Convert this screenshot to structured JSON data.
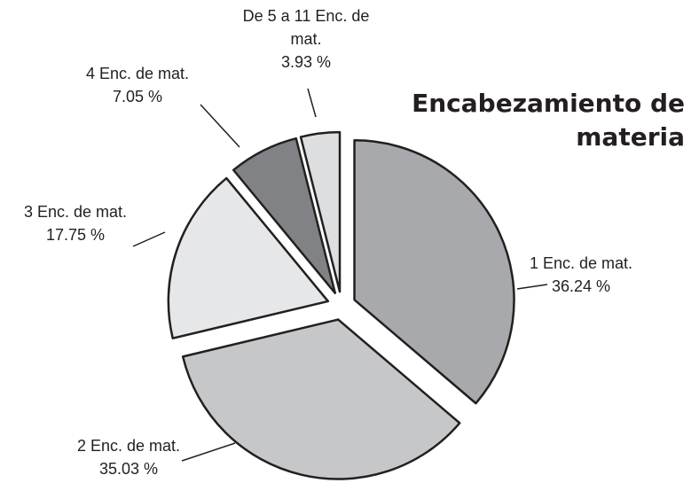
{
  "chart_data": {
    "type": "pie",
    "title": "Encabezamiento de materia",
    "categories": [
      "1 Enc. de mat.",
      "2 Enc. de mat.",
      "3 Enc. de mat.",
      "4 Enc. de mat.",
      "De 5 a 11 Enc. de mat."
    ],
    "values": [
      36.24,
      35.03,
      17.75,
      7.05,
      3.93
    ],
    "value_labels": [
      "36.24 %",
      "35.03 %",
      "17.75 %",
      "7.05 %",
      "3.93 %"
    ],
    "colors": [
      "#a7a9ac",
      "#c6c7c9",
      "#e6e7e8",
      "#808285",
      "#dddee0"
    ]
  }
}
